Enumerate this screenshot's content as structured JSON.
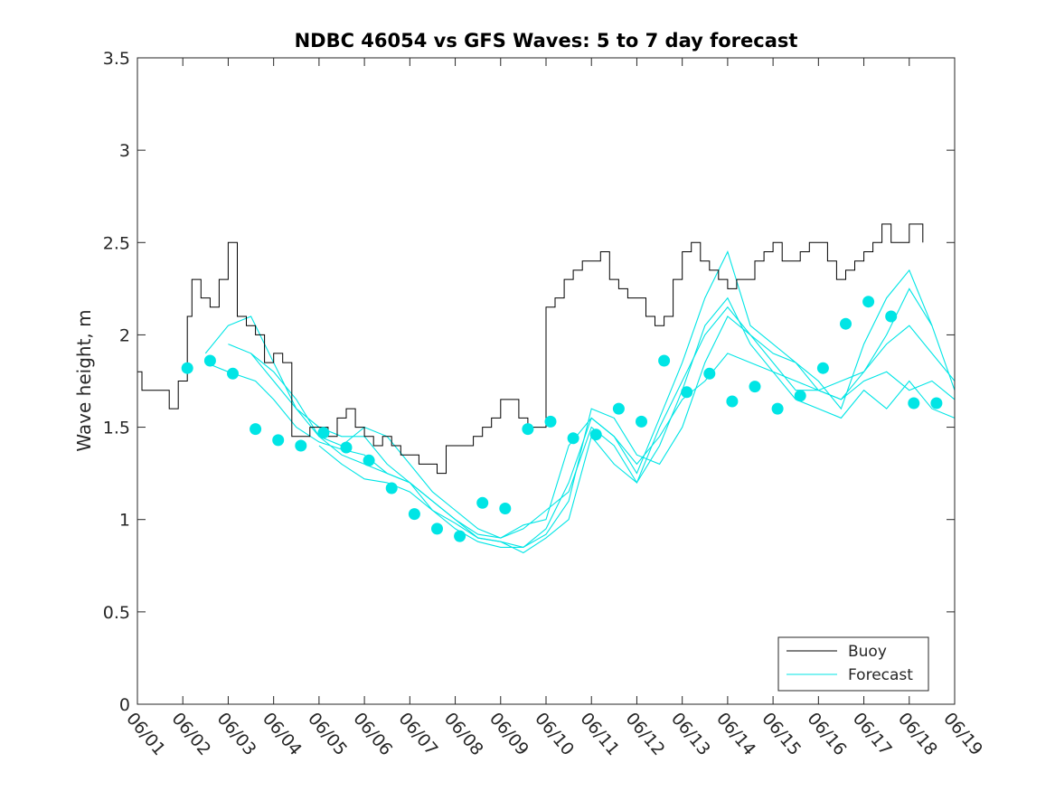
{
  "chart_data": {
    "type": "line",
    "title": "NDBC 46054 vs GFS Waves: 5 to 7 day forecast",
    "xlabel": "",
    "ylabel": "Wave height, m",
    "xlim_days": [
      0,
      18
    ],
    "ylim": [
      0,
      3.5
    ],
    "x_ticks": [
      "06/01",
      "06/02",
      "06/03",
      "06/04",
      "06/05",
      "06/06",
      "06/07",
      "06/08",
      "06/09",
      "06/10",
      "06/11",
      "06/12",
      "06/13",
      "06/14",
      "06/15",
      "06/16",
      "06/17",
      "06/18",
      "06/19"
    ],
    "y_ticks": [
      "0",
      "0.5",
      "1",
      "1.5",
      "2",
      "2.5",
      "3",
      "3.5"
    ],
    "grid": false,
    "legend_position": "bottom-right",
    "legend": [
      {
        "name": "Buoy",
        "color": "#000000"
      },
      {
        "name": "Forecast",
        "color": "#00e5e5"
      }
    ],
    "buoy": {
      "name": "Buoy",
      "color": "#000000",
      "x": [
        0.0,
        0.1,
        0.3,
        0.5,
        0.7,
        0.9,
        1.1,
        1.2,
        1.4,
        1.6,
        1.8,
        2.0,
        2.2,
        2.4,
        2.6,
        2.8,
        3.0,
        3.2,
        3.4,
        3.6,
        3.8,
        4.0,
        4.2,
        4.4,
        4.6,
        4.8,
        5.0,
        5.2,
        5.4,
        5.6,
        5.8,
        6.0,
        6.2,
        6.4,
        6.6,
        6.8,
        7.0,
        7.2,
        7.4,
        7.6,
        7.8,
        8.0,
        8.2,
        8.4,
        8.6,
        8.8,
        9.0,
        9.2,
        9.4,
        9.6,
        9.8,
        10.0,
        10.2,
        10.4,
        10.6,
        10.8,
        11.0,
        11.2,
        11.4,
        11.6,
        11.8,
        12.0,
        12.2,
        12.4,
        12.6,
        12.8,
        13.0,
        13.2,
        13.4,
        13.6,
        13.8,
        14.0,
        14.2,
        14.4,
        14.6,
        14.8,
        15.0,
        15.2,
        15.4,
        15.6,
        15.8,
        16.0,
        16.2,
        16.4,
        16.6,
        16.8,
        17.0,
        17.3
      ],
      "y": [
        1.8,
        1.7,
        1.7,
        1.7,
        1.6,
        1.75,
        2.1,
        2.3,
        2.2,
        2.15,
        2.3,
        2.5,
        2.1,
        2.05,
        2.0,
        1.85,
        1.9,
        1.85,
        1.45,
        1.45,
        1.5,
        1.5,
        1.45,
        1.55,
        1.6,
        1.5,
        1.45,
        1.4,
        1.45,
        1.4,
        1.35,
        1.35,
        1.3,
        1.3,
        1.25,
        1.4,
        1.4,
        1.4,
        1.45,
        1.5,
        1.55,
        1.65,
        1.65,
        1.55,
        1.5,
        1.5,
        2.15,
        2.2,
        2.3,
        2.35,
        2.4,
        2.4,
        2.45,
        2.3,
        2.25,
        2.2,
        2.2,
        2.1,
        2.05,
        2.1,
        2.3,
        2.45,
        2.5,
        2.4,
        2.35,
        2.3,
        2.25,
        2.3,
        2.3,
        2.4,
        2.45,
        2.5,
        2.4,
        2.4,
        2.45,
        2.5,
        2.5,
        2.4,
        2.3,
        2.35,
        2.4,
        2.45,
        2.5,
        2.6,
        2.5,
        2.5,
        2.6,
        2.5
      ]
    },
    "forecast_series": [
      {
        "name": "Forecast",
        "color": "#00e5e5",
        "x": [
          1.5,
          2.0,
          2.6,
          3.0,
          3.5,
          4.0,
          4.5,
          5.0,
          5.5,
          6.0,
          6.5,
          7.0,
          7.5,
          8.0,
          8.5,
          9.0,
          9.5,
          10.0,
          10.5,
          11.0,
          11.5,
          12.0,
          12.5,
          13.0,
          13.5,
          14.0,
          14.5,
          15.0,
          15.5,
          16.0,
          16.5,
          17.0,
          17.5,
          18.0
        ],
        "y": [
          1.85,
          1.8,
          1.75,
          1.65,
          1.5,
          1.42,
          1.38,
          1.35,
          1.25,
          1.2,
          1.1,
          1.0,
          0.92,
          0.9,
          0.97,
          1.0,
          1.4,
          1.55,
          1.45,
          1.3,
          1.45,
          1.65,
          1.75,
          1.9,
          1.85,
          1.8,
          1.75,
          1.7,
          1.65,
          1.8,
          1.95,
          2.05,
          1.9,
          1.75
        ]
      },
      {
        "name": "Forecast",
        "color": "#00e5e5",
        "x": [
          1.5,
          2.0,
          2.5,
          3.0,
          3.5,
          4.0,
          4.5,
          5.0,
          5.5,
          6.0,
          6.5,
          7.0,
          7.5,
          8.0,
          8.5,
          9.0,
          9.5,
          10.0,
          10.5,
          11.0,
          11.5,
          12.0,
          12.5,
          13.0,
          13.5,
          14.0,
          14.5,
          15.0,
          15.5,
          16.0,
          16.5,
          17.0,
          17.5,
          18.0
        ],
        "y": [
          1.9,
          2.05,
          2.1,
          1.85,
          1.6,
          1.5,
          1.45,
          1.45,
          1.3,
          1.2,
          1.05,
          0.95,
          0.88,
          0.85,
          0.85,
          0.95,
          1.2,
          1.55,
          1.45,
          1.25,
          1.55,
          1.85,
          2.2,
          2.45,
          2.05,
          1.95,
          1.85,
          1.75,
          1.6,
          1.95,
          2.2,
          2.35,
          2.05,
          1.7
        ]
      },
      {
        "name": "Forecast",
        "color": "#00e5e5",
        "x": [
          2.0,
          2.5,
          3.0,
          3.5,
          4.0,
          4.5,
          5.0,
          5.5,
          6.0,
          6.5,
          7.0,
          7.5,
          8.0,
          8.5,
          9.0,
          9.5,
          10.0,
          10.5,
          11.0,
          11.5,
          12.0,
          12.5,
          13.0,
          13.5,
          14.0,
          14.5,
          15.0,
          15.5,
          16.0,
          16.5,
          17.0,
          17.5,
          18.0
        ],
        "y": [
          1.95,
          1.9,
          1.75,
          1.6,
          1.45,
          1.4,
          1.5,
          1.45,
          1.3,
          1.15,
          1.05,
          0.95,
          0.9,
          0.95,
          1.05,
          1.15,
          1.5,
          1.4,
          1.2,
          1.5,
          1.75,
          2.0,
          2.15,
          2.0,
          1.85,
          1.7,
          1.7,
          1.65,
          1.75,
          1.8,
          1.7,
          1.75,
          1.65
        ]
      },
      {
        "name": "Forecast",
        "color": "#00e5e5",
        "x": [
          2.5,
          3.0,
          3.5,
          4.0,
          4.5,
          5.0,
          5.5,
          6.0,
          6.5,
          7.0,
          7.5,
          8.0,
          8.5,
          9.0,
          9.5,
          10.0,
          10.5,
          11.0,
          11.5,
          12.0,
          12.5,
          13.0,
          13.5,
          14.0,
          14.5,
          15.0,
          15.5,
          16.0,
          16.5,
          17.0,
          17.5,
          18.0
        ],
        "y": [
          1.9,
          1.8,
          1.65,
          1.45,
          1.35,
          1.3,
          1.25,
          1.2,
          1.1,
          1.0,
          0.9,
          0.88,
          0.82,
          0.9,
          1.0,
          1.45,
          1.3,
          1.2,
          1.4,
          1.7,
          2.05,
          2.2,
          1.95,
          1.8,
          1.65,
          1.6,
          1.55,
          1.7,
          1.6,
          1.75,
          1.6,
          1.55
        ]
      },
      {
        "name": "Forecast",
        "color": "#00e5e5",
        "x": [
          4.0,
          4.5,
          5.0,
          5.5,
          6.0,
          6.5,
          7.0,
          7.5,
          8.0,
          8.5,
          9.0,
          9.5,
          10.0,
          10.5,
          11.0,
          11.5,
          12.0,
          12.5,
          13.0,
          13.5,
          14.0,
          14.5,
          15.0,
          15.5,
          16.0,
          16.5,
          17.0,
          17.5
        ],
        "y": [
          1.4,
          1.3,
          1.22,
          1.2,
          1.15,
          1.05,
          0.98,
          0.9,
          0.88,
          0.85,
          0.92,
          1.1,
          1.6,
          1.55,
          1.35,
          1.3,
          1.5,
          1.85,
          2.1,
          2.0,
          1.9,
          1.85,
          1.7,
          1.75,
          1.8,
          2.0,
          2.25,
          2.05
        ]
      }
    ],
    "forecast_markers": {
      "name": "Forecast",
      "color": "#00e5e5",
      "x": [
        1.1,
        1.6,
        2.1,
        2.6,
        3.1,
        3.6,
        4.1,
        4.6,
        5.1,
        5.6,
        6.1,
        6.6,
        7.1,
        7.6,
        8.1,
        8.6,
        9.1,
        9.6,
        10.1,
        10.6,
        11.1,
        11.6,
        12.1,
        12.6,
        13.1,
        13.6,
        14.1,
        14.6,
        15.1,
        15.6,
        16.1,
        16.6,
        17.1,
        17.6
      ],
      "y": [
        1.82,
        1.86,
        1.79,
        1.49,
        1.43,
        1.4,
        1.47,
        1.39,
        1.32,
        1.17,
        1.03,
        0.95,
        0.91,
        1.09,
        1.06,
        1.49,
        1.53,
        1.44,
        1.46,
        1.6,
        1.53,
        1.86,
        1.69,
        1.79,
        1.64,
        1.72,
        1.6,
        1.67,
        1.82,
        2.06,
        2.18,
        2.1,
        1.63,
        1.63
      ]
    }
  }
}
